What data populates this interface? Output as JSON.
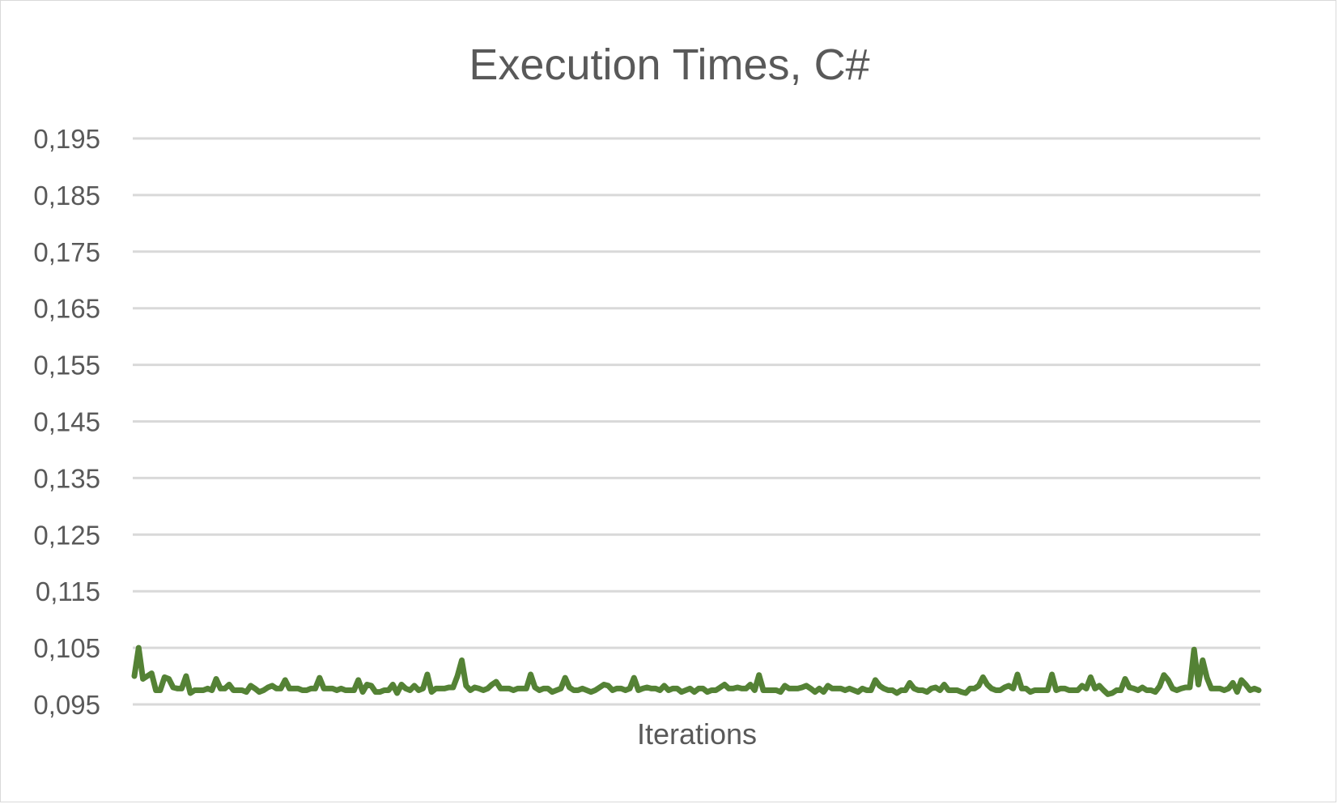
{
  "chart_data": {
    "type": "line",
    "title": "Execution Times, C#",
    "xlabel": "Iterations",
    "ylabel": "",
    "ylim": [
      0.095,
      0.195
    ],
    "y_ticks": [
      "0,195",
      "0,185",
      "0,175",
      "0,165",
      "0,155",
      "0,145",
      "0,135",
      "0,125",
      "0,115",
      "0,105",
      "0,095"
    ],
    "y_tick_values": [
      0.195,
      0.185,
      0.175,
      0.165,
      0.155,
      0.145,
      0.135,
      0.125,
      0.115,
      0.105,
      0.095
    ],
    "grid": true,
    "legend": "none",
    "series": [
      {
        "color": "#548235",
        "values": [
          0.1,
          0.105,
          0.0995,
          0.1,
          0.1005,
          0.0975,
          0.0975,
          0.0998,
          0.0995,
          0.098,
          0.0978,
          0.0978,
          0.1,
          0.097,
          0.0975,
          0.0975,
          0.0975,
          0.0978,
          0.0975,
          0.0995,
          0.0978,
          0.0978,
          0.0985,
          0.0975,
          0.0975,
          0.0975,
          0.0972,
          0.0983,
          0.0978,
          0.0972,
          0.0975,
          0.098,
          0.0983,
          0.0978,
          0.0978,
          0.0993,
          0.0978,
          0.0978,
          0.0978,
          0.0975,
          0.0975,
          0.0978,
          0.0978,
          0.0997,
          0.0978,
          0.0978,
          0.0978,
          0.0975,
          0.0978,
          0.0975,
          0.0975,
          0.0975,
          0.0993,
          0.0972,
          0.0985,
          0.0983,
          0.0972,
          0.0972,
          0.0975,
          0.0975,
          0.0985,
          0.097,
          0.0985,
          0.0978,
          0.0975,
          0.0983,
          0.0975,
          0.0978,
          0.1003,
          0.0972,
          0.0978,
          0.0978,
          0.0978,
          0.098,
          0.098,
          0.1,
          0.1028,
          0.0983,
          0.0975,
          0.098,
          0.0978,
          0.0975,
          0.0978,
          0.0985,
          0.099,
          0.0978,
          0.0978,
          0.0978,
          0.0975,
          0.0978,
          0.0978,
          0.0978,
          0.1003,
          0.098,
          0.0975,
          0.0978,
          0.0978,
          0.0972,
          0.0975,
          0.0978,
          0.0997,
          0.098,
          0.0975,
          0.0975,
          0.0978,
          0.0975,
          0.0972,
          0.0975,
          0.098,
          0.0985,
          0.0983,
          0.0975,
          0.0978,
          0.0978,
          0.0975,
          0.0978,
          0.0997,
          0.0975,
          0.0978,
          0.098,
          0.0978,
          0.0978,
          0.0975,
          0.0983,
          0.0975,
          0.0978,
          0.0978,
          0.0972,
          0.0975,
          0.0978,
          0.0972,
          0.0978,
          0.0978,
          0.0972,
          0.0975,
          0.0975,
          0.098,
          0.0985,
          0.0978,
          0.0978,
          0.098,
          0.0978,
          0.0978,
          0.0985,
          0.0975,
          0.1002,
          0.0975,
          0.0975,
          0.0975,
          0.0975,
          0.0972,
          0.0983,
          0.0978,
          0.0978,
          0.0978,
          0.098,
          0.0983,
          0.0978,
          0.0972,
          0.0978,
          0.0972,
          0.0983,
          0.0978,
          0.0978,
          0.0978,
          0.0975,
          0.0978,
          0.0975,
          0.0972,
          0.0978,
          0.0975,
          0.0975,
          0.0993,
          0.0983,
          0.0978,
          0.0975,
          0.0975,
          0.097,
          0.0975,
          0.0975,
          0.0988,
          0.0978,
          0.0975,
          0.0975,
          0.0972,
          0.0978,
          0.098,
          0.0975,
          0.0985,
          0.0975,
          0.0975,
          0.0975,
          0.0972,
          0.097,
          0.0978,
          0.0978,
          0.0983,
          0.0998,
          0.0985,
          0.0978,
          0.0975,
          0.0975,
          0.098,
          0.0983,
          0.0978,
          0.1003,
          0.0978,
          0.0978,
          0.0972,
          0.0975,
          0.0975,
          0.0975,
          0.0975,
          0.1003,
          0.0975,
          0.0978,
          0.0978,
          0.0975,
          0.0975,
          0.0975,
          0.0983,
          0.0978,
          0.0998,
          0.0978,
          0.0983,
          0.0975,
          0.0968,
          0.097,
          0.0975,
          0.0975,
          0.0995,
          0.098,
          0.0978,
          0.0975,
          0.098,
          0.0975,
          0.0975,
          0.0972,
          0.0982,
          0.1002,
          0.0993,
          0.0978,
          0.0975,
          0.0978,
          0.098,
          0.098,
          0.1047,
          0.0985,
          0.1028,
          0.0997,
          0.0978,
          0.0978,
          0.0978,
          0.0975,
          0.0978,
          0.0988,
          0.0972,
          0.0993,
          0.0985,
          0.0975,
          0.0978,
          0.0975
        ]
      }
    ]
  }
}
